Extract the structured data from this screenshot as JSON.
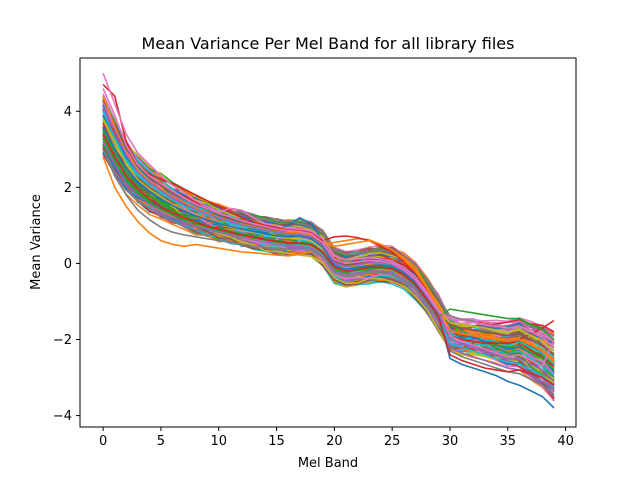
{
  "chart_data": {
    "type": "line",
    "title": "Mean Variance Per Mel Band for all library files",
    "xlabel": "Mel Band",
    "ylabel": "Mean Variance",
    "xlim": [
      -2,
      40.9
    ],
    "ylim": [
      -4.3,
      5.4
    ],
    "xticks": [
      0,
      5,
      10,
      15,
      20,
      25,
      30,
      35,
      40
    ],
    "yticks": [
      -4,
      -2,
      0,
      2,
      4
    ],
    "grid": false,
    "legend": "none",
    "x": [
      0,
      1,
      2,
      3,
      4,
      5,
      6,
      7,
      8,
      9,
      10,
      11,
      12,
      13,
      14,
      15,
      16,
      17,
      18,
      19,
      20,
      21,
      22,
      23,
      24,
      25,
      26,
      27,
      28,
      29,
      30,
      31,
      32,
      33,
      34,
      35,
      36,
      37,
      38,
      39
    ],
    "base_curve": [
      3.7,
      3.1,
      2.6,
      2.25,
      2.0,
      1.8,
      1.6,
      1.45,
      1.3,
      1.2,
      1.1,
      1.0,
      0.92,
      0.85,
      0.78,
      0.72,
      0.68,
      0.68,
      0.62,
      0.4,
      -0.05,
      -0.15,
      -0.1,
      -0.05,
      -0.02,
      -0.05,
      -0.2,
      -0.45,
      -0.85,
      -1.3,
      -1.85,
      -1.95,
      -2.0,
      -2.05,
      -2.1,
      -2.15,
      -2.1,
      -2.3,
      -2.45,
      -2.7
    ],
    "series": [
      {
        "color": "#1f77b4",
        "values": [
          3.9,
          3.3,
          2.8,
          2.4,
          2.15,
          1.95,
          1.75,
          1.6,
          1.45,
          1.35,
          1.25,
          1.15,
          1.07,
          1.0,
          0.93,
          0.9,
          1.0,
          1.2,
          1.05,
          0.6,
          0.05,
          0.0,
          0.05,
          0.1,
          0.1,
          0.05,
          -0.1,
          -0.3,
          -0.7,
          -1.1,
          -1.7,
          -1.85,
          -1.95,
          -2.05,
          -2.15,
          -2.25,
          -2.2,
          -2.35,
          -2.5,
          -2.85
        ]
      },
      {
        "color": "#ff7f0e",
        "values": [
          2.8,
          2.0,
          1.5,
          1.1,
          0.8,
          0.6,
          0.5,
          0.45,
          0.5,
          0.45,
          0.4,
          0.35,
          0.3,
          0.28,
          0.25,
          0.22,
          0.2,
          0.25,
          0.3,
          0.5,
          0.55,
          0.6,
          0.65,
          0.62,
          0.5,
          0.35,
          0.15,
          -0.1,
          -0.6,
          -1.1,
          -1.6,
          -1.7,
          -1.8,
          -1.9,
          -1.95,
          -2.0,
          -1.95,
          -2.1,
          -2.3,
          -2.55
        ]
      },
      {
        "color": "#2ca02c",
        "values": [
          3.5,
          2.9,
          2.4,
          2.05,
          1.8,
          1.6,
          1.4,
          1.25,
          1.1,
          1.0,
          0.92,
          0.85,
          0.78,
          0.72,
          0.65,
          0.6,
          0.55,
          0.55,
          0.5,
          0.3,
          -0.1,
          -0.2,
          -0.15,
          -0.1,
          -0.08,
          -0.12,
          -0.28,
          -0.55,
          -0.95,
          -1.35,
          -1.9,
          -2.0,
          -2.05,
          -2.1,
          -2.15,
          -2.2,
          -2.15,
          -2.35,
          -2.5,
          -2.8
        ]
      },
      {
        "color": "#d62728",
        "values": [
          4.7,
          4.4,
          3.2,
          2.6,
          2.35,
          2.2,
          2.1,
          1.95,
          1.8,
          1.65,
          1.5,
          1.35,
          1.2,
          1.1,
          1.0,
          0.95,
          0.9,
          0.85,
          0.8,
          0.6,
          0.7,
          0.72,
          0.68,
          0.6,
          0.45,
          0.3,
          0.05,
          -0.25,
          -0.7,
          -1.2,
          -1.9,
          -2.0,
          -2.05,
          -2.1,
          -2.1,
          -2.1,
          -2.0,
          -1.85,
          -1.7,
          -1.5
        ]
      },
      {
        "color": "#9467bd",
        "values": [
          3.2,
          2.6,
          2.1,
          1.8,
          1.55,
          1.35,
          1.2,
          1.08,
          0.98,
          0.9,
          0.82,
          0.75,
          0.68,
          0.62,
          0.55,
          0.5,
          0.45,
          0.45,
          0.4,
          0.2,
          -0.2,
          -0.3,
          -0.25,
          -0.2,
          -0.2,
          -0.25,
          -0.4,
          -0.65,
          -1.05,
          -1.5,
          -2.2,
          -2.35,
          -2.45,
          -2.55,
          -2.65,
          -2.75,
          -2.8,
          -2.95,
          -3.1,
          -3.35
        ]
      },
      {
        "color": "#8c564b",
        "values": [
          4.3,
          3.7,
          3.05,
          2.55,
          2.25,
          2.05,
          1.85,
          1.7,
          1.55,
          1.42,
          1.3,
          1.2,
          1.1,
          1.0,
          0.92,
          0.85,
          0.8,
          0.78,
          0.72,
          0.5,
          0.05,
          -0.05,
          0.0,
          0.05,
          0.05,
          0.0,
          -0.15,
          -0.4,
          -0.8,
          -1.2,
          -1.6,
          -1.7,
          -1.75,
          -1.8,
          -1.85,
          -1.9,
          -1.85,
          -2.0,
          -2.15,
          -2.4
        ]
      },
      {
        "color": "#e377c2",
        "values": [
          5.0,
          4.2,
          3.4,
          2.9,
          2.6,
          2.3,
          2.05,
          1.85,
          1.65,
          1.5,
          1.35,
          1.45,
          1.4,
          1.2,
          1.05,
          0.98,
          0.92,
          0.9,
          0.85,
          0.65,
          0.2,
          0.1,
          0.12,
          0.15,
          0.12,
          0.05,
          -0.1,
          -0.35,
          -0.75,
          -1.2,
          -1.9,
          -2.05,
          -2.15,
          -2.25,
          -2.35,
          -2.45,
          -2.4,
          -2.55,
          -2.7,
          -2.0
        ]
      },
      {
        "color": "#7f7f7f",
        "values": [
          3.0,
          2.3,
          1.8,
          1.4,
          1.15,
          0.95,
          0.82,
          0.75,
          0.7,
          0.65,
          0.6,
          0.55,
          0.5,
          0.45,
          0.42,
          0.4,
          0.38,
          0.38,
          0.35,
          0.15,
          -0.25,
          -0.35,
          -0.3,
          -0.25,
          -0.25,
          -0.3,
          -0.45,
          -0.7,
          -1.1,
          -1.55,
          -2.3,
          -2.45,
          -2.55,
          -2.65,
          -2.75,
          -2.85,
          -2.9,
          -3.05,
          -3.2,
          -3.5
        ]
      },
      {
        "color": "#bcbd22",
        "values": [
          3.8,
          3.2,
          2.6,
          2.2,
          1.95,
          1.75,
          1.55,
          1.4,
          1.25,
          1.15,
          1.05,
          0.95,
          0.88,
          0.82,
          0.76,
          0.7,
          0.66,
          0.65,
          0.6,
          0.38,
          -0.05,
          -0.12,
          -0.08,
          0.0,
          0.05,
          0.0,
          -0.18,
          -0.45,
          -0.85,
          -1.25,
          -1.55,
          -1.6,
          -1.65,
          -1.7,
          -1.75,
          -1.8,
          -1.75,
          -1.9,
          -2.05,
          -2.3
        ]
      },
      {
        "color": "#17becf",
        "values": [
          4.0,
          3.3,
          2.7,
          2.3,
          2.05,
          1.85,
          1.65,
          1.5,
          1.38,
          1.28,
          1.18,
          1.08,
          1.0,
          0.93,
          0.86,
          0.8,
          0.76,
          0.78,
          0.7,
          0.45,
          -0.1,
          -0.2,
          -0.18,
          -0.12,
          -0.1,
          -0.15,
          -0.3,
          -0.55,
          -0.95,
          -1.4,
          -2.1,
          -2.2,
          -2.3,
          -2.4,
          -2.5,
          -2.6,
          -2.65,
          -2.8,
          -2.95,
          -3.25
        ]
      },
      {
        "color": "#1f77b4",
        "values": [
          3.6,
          3.0,
          2.5,
          2.15,
          1.9,
          1.7,
          1.52,
          1.38,
          1.25,
          1.15,
          1.05,
          0.97,
          0.9,
          0.84,
          0.78,
          0.72,
          0.7,
          0.72,
          0.65,
          0.42,
          -0.05,
          -0.15,
          -0.1,
          -0.06,
          -0.04,
          -0.08,
          -0.25,
          -0.5,
          -0.9,
          -1.35,
          -2.5,
          -2.65,
          -2.75,
          -2.85,
          -2.95,
          -3.1,
          -3.2,
          -3.35,
          -3.5,
          -3.8
        ]
      },
      {
        "color": "#ff7f0e",
        "values": [
          4.4,
          3.6,
          2.9,
          2.45,
          2.15,
          1.95,
          1.75,
          1.6,
          1.45,
          1.33,
          1.22,
          1.12,
          1.04,
          0.97,
          0.9,
          0.84,
          0.8,
          0.8,
          0.75,
          0.55,
          0.45,
          0.5,
          0.55,
          0.6,
          0.5,
          0.35,
          0.1,
          -0.2,
          -0.65,
          -1.15,
          -1.75,
          -1.85,
          -1.9,
          -1.95,
          -2.0,
          -2.05,
          -2.0,
          -2.15,
          -2.3,
          -2.6
        ]
      },
      {
        "color": "#2ca02c",
        "values": [
          3.3,
          2.7,
          2.2,
          1.85,
          1.6,
          1.42,
          1.28,
          1.15,
          1.04,
          0.95,
          0.87,
          0.8,
          0.73,
          0.67,
          0.61,
          0.56,
          0.52,
          0.52,
          0.48,
          0.28,
          -0.12,
          -0.22,
          -0.18,
          -0.12,
          -0.12,
          -0.16,
          -0.32,
          -0.58,
          -0.98,
          -1.4,
          -1.2,
          -1.25,
          -1.3,
          -1.35,
          -1.4,
          -1.45,
          -1.45,
          -1.6,
          -1.75,
          -2.0
        ]
      },
      {
        "color": "#9467bd",
        "values": [
          4.1,
          3.5,
          2.85,
          2.4,
          2.12,
          1.92,
          1.72,
          1.57,
          1.42,
          1.3,
          1.2,
          1.1,
          1.02,
          0.95,
          0.88,
          0.82,
          0.78,
          0.76,
          0.7,
          0.48,
          0.02,
          -0.08,
          -0.04,
          0.02,
          0.02,
          -0.03,
          -0.2,
          -0.45,
          -0.85,
          -1.3,
          -2.0,
          -2.1,
          -2.2,
          -2.3,
          -2.4,
          -2.5,
          -2.5,
          -2.65,
          -2.8,
          -3.1
        ]
      },
      {
        "color": "#d62728",
        "values": [
          3.4,
          2.8,
          2.3,
          1.95,
          1.7,
          1.5,
          1.33,
          1.2,
          1.08,
          0.98,
          0.9,
          0.82,
          0.75,
          0.69,
          0.63,
          0.58,
          0.54,
          0.54,
          0.5,
          0.3,
          -0.1,
          -0.2,
          -0.16,
          -0.1,
          -0.1,
          -0.14,
          -0.3,
          -0.55,
          -0.95,
          -1.4,
          -2.4,
          -2.55,
          -2.65,
          -2.75,
          -2.8,
          -2.85,
          -2.8,
          -2.9,
          -3.0,
          -3.2
        ]
      },
      {
        "color": "#e377c2",
        "values": [
          4.6,
          3.9,
          3.1,
          2.6,
          2.3,
          2.1,
          1.9,
          1.72,
          1.56,
          1.44,
          1.32,
          1.22,
          1.12,
          1.04,
          0.97,
          0.9,
          0.86,
          0.84,
          0.78,
          0.55,
          0.1,
          0.0,
          0.04,
          0.08,
          0.06,
          0.0,
          -0.16,
          -0.42,
          -0.82,
          -1.25,
          -1.45,
          -1.5,
          -1.55,
          -1.6,
          -1.65,
          -1.7,
          -1.65,
          -1.8,
          -1.95,
          -2.2
        ]
      }
    ]
  }
}
